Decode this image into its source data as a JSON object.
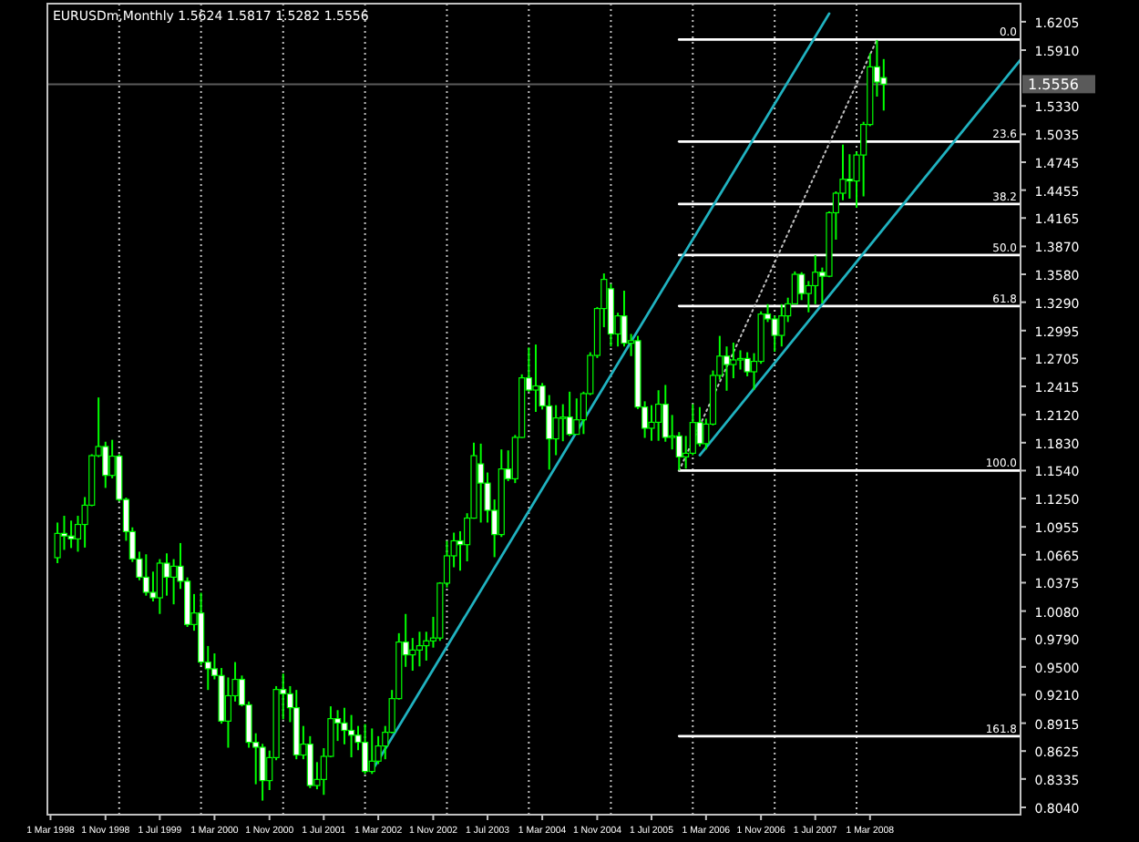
{
  "chart_data": {
    "type": "candlestick",
    "title": "EURUSDm,Monthly  1.5624 1.5817 1.5282 1.5556",
    "series": [
      {
        "color": "#00ff00",
        "x": [
          "1998-04",
          "1998-05",
          "1998-06",
          "1998-07",
          "1998-08",
          "1998-09",
          "1998-10",
          "1998-11",
          "1998-12",
          "1999-01",
          "1999-02",
          "1999-03",
          "1999-04",
          "1999-05",
          "1999-06",
          "1999-07",
          "1999-08",
          "1999-09",
          "1999-10",
          "1999-11",
          "1999-12",
          "2000-01",
          "2000-02",
          "2000-03",
          "2000-04",
          "2000-05",
          "2000-06",
          "2000-07",
          "2000-08",
          "2000-09",
          "2000-10",
          "2000-11",
          "2000-12",
          "2001-01",
          "2001-02",
          "2001-03",
          "2001-04",
          "2001-05",
          "2001-06",
          "2001-07",
          "2001-08",
          "2001-09",
          "2001-10",
          "2001-11",
          "2001-12",
          "2002-01",
          "2002-02",
          "2002-03",
          "2002-04",
          "2002-05",
          "2002-06",
          "2002-07",
          "2002-08",
          "2002-09",
          "2002-10",
          "2002-11",
          "2002-12",
          "2003-01",
          "2003-02",
          "2003-03",
          "2003-04",
          "2003-05",
          "2003-06",
          "2003-07",
          "2003-08",
          "2003-09",
          "2003-10",
          "2003-11",
          "2003-12",
          "2004-01",
          "2004-02",
          "2004-03",
          "2004-04",
          "2004-05",
          "2004-06",
          "2004-07",
          "2004-08",
          "2004-09",
          "2004-10",
          "2004-11",
          "2004-12",
          "2005-01",
          "2005-02",
          "2005-03",
          "2005-04",
          "2005-05",
          "2005-06",
          "2005-07",
          "2005-08",
          "2005-09",
          "2005-10",
          "2005-11",
          "2005-12",
          "2006-01",
          "2006-02",
          "2006-03",
          "2006-04",
          "2006-05",
          "2006-06",
          "2006-07",
          "2006-08",
          "2006-09",
          "2006-10",
          "2006-11",
          "2006-12",
          "2007-01",
          "2007-02",
          "2007-03",
          "2007-04",
          "2007-05",
          "2007-06",
          "2007-07",
          "2007-08",
          "2007-09",
          "2007-10",
          "2007-11",
          "2007-12",
          "2008-01",
          "2008-02",
          "2008-03",
          "2008-04",
          "2008-05"
        ],
        "ohlc": [
          [
            1.0635,
            1.1,
            1.0578,
            1.0887
          ],
          [
            1.0887,
            1.107,
            1.0716,
            1.086
          ],
          [
            1.086,
            1.102,
            1.0735,
            1.083
          ],
          [
            1.083,
            1.107,
            1.0697,
            1.098
          ],
          [
            1.098,
            1.1265,
            1.074,
            1.118
          ],
          [
            1.118,
            1.171,
            1.117,
            1.1695
          ],
          [
            1.1695,
            1.23,
            1.168,
            1.179
          ],
          [
            1.179,
            1.184,
            1.136,
            1.149
          ],
          [
            1.149,
            1.186,
            1.146,
            1.169
          ],
          [
            1.169,
            1.171,
            1.122,
            1.124
          ],
          [
            1.124,
            1.126,
            1.081,
            1.0906
          ],
          [
            1.0906,
            1.095,
            1.059,
            1.0622
          ],
          [
            1.0622,
            1.0697,
            1.04,
            1.0432
          ],
          [
            1.0432,
            1.067,
            1.024,
            1.0275
          ],
          [
            1.0275,
            1.049,
            1.018,
            1.0218
          ],
          [
            1.0218,
            1.062,
            1.005,
            1.0578
          ],
          [
            1.0578,
            1.068,
            1.024,
            1.0432
          ],
          [
            1.0432,
            1.062,
            1.015,
            1.0546
          ],
          [
            1.0546,
            1.0787,
            1.031,
            1.039
          ],
          [
            1.039,
            1.043,
            0.9915,
            0.994
          ],
          [
            0.994,
            1.0257,
            0.9876,
            1.006
          ],
          [
            1.006,
            1.027,
            0.952,
            0.955
          ],
          [
            0.955,
            0.9717,
            0.926,
            0.948
          ],
          [
            0.948,
            0.964,
            0.937,
            0.941
          ],
          [
            0.941,
            0.9488,
            0.891,
            0.8936
          ],
          [
            0.8936,
            0.939,
            0.866,
            0.92
          ],
          [
            0.92,
            0.955,
            0.914,
            0.937
          ],
          [
            0.937,
            0.941,
            0.909,
            0.9106
          ],
          [
            0.9106,
            0.914,
            0.866,
            0.8716
          ],
          [
            0.8716,
            0.881,
            0.828,
            0.8665
          ],
          [
            0.8665,
            0.87,
            0.811,
            0.8318
          ],
          [
            0.8318,
            0.863,
            0.822,
            0.8557
          ],
          [
            0.8557,
            0.93,
            0.853,
            0.9265
          ],
          [
            0.9265,
            0.943,
            0.8955,
            0.922
          ],
          [
            0.922,
            0.93,
            0.8926,
            0.9076
          ],
          [
            0.9076,
            0.926,
            0.854,
            0.8584
          ],
          [
            0.8584,
            0.8886,
            0.854,
            0.8697
          ],
          [
            0.8697,
            0.878,
            0.824,
            0.8267
          ],
          [
            0.8267,
            0.851,
            0.8228,
            0.833
          ],
          [
            0.833,
            0.8655,
            0.817,
            0.857
          ],
          [
            0.857,
            0.909,
            0.856,
            0.8962
          ],
          [
            0.8962,
            0.905,
            0.873,
            0.8917
          ],
          [
            0.8917,
            0.9075,
            0.8695,
            0.884
          ],
          [
            0.884,
            0.9,
            0.856,
            0.879
          ],
          [
            0.879,
            0.8886,
            0.8634,
            0.8716
          ],
          [
            0.8716,
            0.8905,
            0.8387,
            0.8413
          ],
          [
            0.8413,
            0.886,
            0.8387,
            0.852
          ],
          [
            0.852,
            0.878,
            0.849,
            0.8678
          ],
          [
            0.8678,
            0.8886,
            0.854,
            0.882
          ],
          [
            0.882,
            0.926,
            0.881,
            0.917
          ],
          [
            0.917,
            0.985,
            0.916,
            0.9758
          ],
          [
            0.9758,
            1.005,
            0.95,
            0.9625
          ],
          [
            0.9625,
            0.98,
            0.946,
            0.9675
          ],
          [
            0.9675,
            0.9865,
            0.9505,
            0.972
          ],
          [
            0.972,
            0.9865,
            0.9565,
            0.977
          ],
          [
            0.977,
            1.002,
            0.97,
            0.98
          ],
          [
            0.98,
            1.038,
            0.977,
            1.037
          ],
          [
            1.037,
            1.081,
            1.0325,
            1.0654
          ],
          [
            1.0654,
            1.0895,
            1.0535,
            1.081
          ],
          [
            1.081,
            1.091,
            1.05,
            1.077
          ],
          [
            1.077,
            1.1097,
            1.0597,
            1.1046
          ],
          [
            1.1046,
            1.183,
            1.104,
            1.1695
          ],
          [
            1.161,
            1.182,
            1.1,
            1.141
          ],
          [
            1.141,
            1.152,
            1.1,
            1.1127
          ],
          [
            1.1127,
            1.124,
            1.064,
            1.0875
          ],
          [
            1.0875,
            1.176,
            1.085,
            1.1557
          ],
          [
            1.1557,
            1.175,
            1.143,
            1.1455
          ],
          [
            1.1455,
            1.191,
            1.141,
            1.1885
          ],
          [
            1.1885,
            1.254,
            1.188,
            1.2504
          ],
          [
            1.2504,
            1.282,
            1.236,
            1.2377
          ],
          [
            1.2377,
            1.285,
            1.215,
            1.242
          ],
          [
            1.242,
            1.245,
            1.2175,
            1.2212
          ],
          [
            1.2212,
            1.2325,
            1.155,
            1.187
          ],
          [
            1.187,
            1.222,
            1.17,
            1.2087
          ],
          [
            1.2087,
            1.223,
            1.1845,
            1.2097
          ],
          [
            1.2097,
            1.236,
            1.19,
            1.1917
          ],
          [
            1.1917,
            1.229,
            1.1915,
            1.2068
          ],
          [
            1.2068,
            1.236,
            1.192,
            1.234
          ],
          [
            1.234,
            1.277,
            1.2325,
            1.2737
          ],
          [
            1.2737,
            1.324,
            1.271,
            1.3224
          ],
          [
            1.3224,
            1.3589,
            1.303,
            1.3527
          ],
          [
            1.343,
            1.348,
            1.283,
            1.296
          ],
          [
            1.296,
            1.318,
            1.283,
            1.3148
          ],
          [
            1.3148,
            1.341,
            1.283,
            1.2864
          ],
          [
            1.2864,
            1.296,
            1.273,
            1.289
          ],
          [
            1.289,
            1.294,
            1.218,
            1.2201
          ],
          [
            1.2201,
            1.226,
            1.188,
            1.198
          ],
          [
            1.198,
            1.222,
            1.185,
            1.2042
          ],
          [
            1.2042,
            1.2375,
            1.185,
            1.223
          ],
          [
            1.223,
            1.243,
            1.184,
            1.1885
          ],
          [
            1.1885,
            1.2118,
            1.176,
            1.19
          ],
          [
            1.19,
            1.194,
            1.1544,
            1.1682
          ],
          [
            1.1682,
            1.19,
            1.156,
            1.172
          ],
          [
            1.172,
            1.223,
            1.17,
            1.204
          ],
          [
            1.204,
            1.22,
            1.179,
            1.182
          ],
          [
            1.182,
            1.208,
            1.176,
            1.2023
          ],
          [
            1.2023,
            1.258,
            1.201,
            1.2529
          ],
          [
            1.2529,
            1.294,
            1.2485,
            1.273
          ],
          [
            1.273,
            1.283,
            1.237,
            1.2642
          ],
          [
            1.2642,
            1.287,
            1.25,
            1.269
          ],
          [
            1.269,
            1.279,
            1.259,
            1.2705
          ],
          [
            1.2705,
            1.277,
            1.252,
            1.2567
          ],
          [
            1.2567,
            1.276,
            1.238,
            1.2675
          ],
          [
            1.2675,
            1.3195,
            1.265,
            1.3167
          ],
          [
            1.3167,
            1.327,
            1.3084,
            1.3116
          ],
          [
            1.3116,
            1.315,
            1.2775,
            1.2945
          ],
          [
            1.2945,
            1.327,
            1.283,
            1.3148
          ],
          [
            1.3148,
            1.3337,
            1.3084,
            1.3273
          ],
          [
            1.3273,
            1.361,
            1.327,
            1.358
          ],
          [
            1.358,
            1.3602,
            1.3312,
            1.338
          ],
          [
            1.338,
            1.351,
            1.3185,
            1.3462
          ],
          [
            1.3462,
            1.3778,
            1.327,
            1.3602
          ],
          [
            1.3602,
            1.365,
            1.328,
            1.356
          ],
          [
            1.356,
            1.4234,
            1.355,
            1.422
          ],
          [
            1.422,
            1.4442,
            1.394,
            1.4423
          ],
          [
            1.4423,
            1.4928,
            1.435,
            1.4568
          ],
          [
            1.4568,
            1.4828,
            1.4366,
            1.455
          ],
          [
            1.455,
            1.4854,
            1.4271,
            1.482
          ],
          [
            1.482,
            1.5165,
            1.439,
            1.5137
          ],
          [
            1.5137,
            1.5876,
            1.512,
            1.5736
          ],
          [
            1.5736,
            1.6015,
            1.5427,
            1.5578
          ],
          [
            1.5624,
            1.5817,
            1.5282,
            1.5556
          ]
        ]
      },
      {
        "type": "line",
        "color": "#ffffff",
        "x": [
          "2005-11",
          "2010-01-01"
        ],
        "values": [
          1.602,
          1.602
        ]
      },
      {
        "type": "line",
        "color": "#ffffff",
        "x": [
          "2005-11",
          "2010-01-01"
        ],
        "values": [
          1.496,
          1.496
        ]
      },
      {
        "type": "line",
        "color": "#ffffff",
        "x": [
          "2005-11",
          "2010-01-01"
        ],
        "values": [
          1.431,
          1.431
        ]
      },
      {
        "type": "line",
        "color": "#ffffff",
        "x": [
          "2005-11",
          "2010-01-01"
        ],
        "values": [
          1.378,
          1.378
        ]
      },
      {
        "type": "line",
        "color": "#ffffff",
        "x": [
          "2005-11",
          "2010-01-01"
        ],
        "values": [
          1.325,
          1.325
        ]
      },
      {
        "type": "line",
        "color": "#ffffff",
        "x": [
          "2005-11",
          "2010-01-01"
        ],
        "values": [
          1.154,
          1.154
        ]
      },
      {
        "type": "line",
        "color": "#ffffff",
        "x": [
          "2005-11",
          "2010-01-01"
        ],
        "values": [
          0.878,
          0.878
        ]
      },
      {
        "type": "line",
        "color": "#c0c0c0",
        "line_style": "dotted",
        "x": [
          "2005-11",
          "2008-04"
        ],
        "values": [
          1.154,
          1.602
        ]
      },
      {
        "type": "line",
        "color": "#20b2c0",
        "x": [
          "2002-02",
          "2007-09"
        ],
        "values": [
          0.842,
          1.629
        ]
      },
      {
        "type": "line",
        "color": "#20b2c0",
        "x": [
          "2006-02",
          "2010-01-01"
        ],
        "values": [
          1.17,
          1.581
        ]
      }
    ],
    "xlim": [
      "1998-02-15",
      "2010-01-01"
    ],
    "xticks": [
      {
        "value": "1998-03",
        "label": "1 Mar 1998"
      },
      {
        "value": "1998-11",
        "label": "1 Nov 1998"
      },
      {
        "value": "1999-07",
        "label": "1 Jul 1999"
      },
      {
        "value": "2000-03",
        "label": "1 Mar 2000"
      },
      {
        "value": "2000-11",
        "label": "1 Nov 2000"
      },
      {
        "value": "2001-07",
        "label": "1 Jul 2001"
      },
      {
        "value": "2002-03",
        "label": "1 Mar 2002"
      },
      {
        "value": "2002-11",
        "label": "1 Nov 2002"
      },
      {
        "value": "2003-07",
        "label": "1 Jul 2003"
      },
      {
        "value": "2004-03",
        "label": "1 Mar 2004"
      },
      {
        "value": "2004-11",
        "label": "1 Nov 2004"
      },
      {
        "value": "2005-07",
        "label": "1 Jul 2005"
      },
      {
        "value": "2006-03",
        "label": "1 Mar 2006"
      },
      {
        "value": "2006-11",
        "label": "1 Nov 2006"
      },
      {
        "value": "2007-07",
        "label": "1 Jul 2007"
      },
      {
        "value": "2008-03",
        "label": "1 Mar 2008"
      }
    ],
    "ylim": [
      0.7964,
      1.6393
    ],
    "yticks": [
      {
        "value": 0.804,
        "label": "0.8040"
      },
      {
        "value": 0.8335,
        "label": "0.8335"
      },
      {
        "value": 0.8625,
        "label": "0.8625"
      },
      {
        "value": 0.8915,
        "label": "0.8915"
      },
      {
        "value": 0.921,
        "label": "0.9210"
      },
      {
        "value": 0.95,
        "label": "0.9500"
      },
      {
        "value": 0.979,
        "label": "0.9790"
      },
      {
        "value": 1.008,
        "label": "1.0080"
      },
      {
        "value": 1.0375,
        "label": "1.0375"
      },
      {
        "value": 1.0665,
        "label": "1.0665"
      },
      {
        "value": 1.0955,
        "label": "1.0955"
      },
      {
        "value": 1.125,
        "label": "1.1250"
      },
      {
        "value": 1.154,
        "label": "1.1540"
      },
      {
        "value": 1.183,
        "label": "1.1830"
      },
      {
        "value": 1.212,
        "label": "1.2120"
      },
      {
        "value": 1.2415,
        "label": "1.2415"
      },
      {
        "value": 1.2705,
        "label": "1.2705"
      },
      {
        "value": 1.2995,
        "label": "1.2995"
      },
      {
        "value": 1.329,
        "label": "1.3290"
      },
      {
        "value": 1.358,
        "label": "1.3580"
      },
      {
        "value": 1.387,
        "label": "1.3870"
      },
      {
        "value": 1.4165,
        "label": "1.4165"
      },
      {
        "value": 1.4455,
        "label": "1.4455"
      },
      {
        "value": 1.4745,
        "label": "1.4745"
      },
      {
        "value": 1.5035,
        "label": "1.5035"
      },
      {
        "value": 1.533,
        "label": "1.5330"
      },
      {
        "value": 1.591,
        "label": "1.5910"
      },
      {
        "value": 1.6205,
        "label": "1.6205"
      }
    ],
    "ref_lines": [
      {
        "axis": "y",
        "value": 1.5556,
        "label": "1.5556",
        "color": "#5a5a5a"
      },
      {
        "axis": "x",
        "value": "1999-01",
        "color": "#c0c0c0",
        "line_style": "dotted"
      },
      {
        "axis": "x",
        "value": "2000-01",
        "color": "#c0c0c0",
        "line_style": "dotted"
      },
      {
        "axis": "x",
        "value": "2001-01",
        "color": "#c0c0c0",
        "line_style": "dotted"
      },
      {
        "axis": "x",
        "value": "2002-01",
        "color": "#c0c0c0",
        "line_style": "dotted"
      },
      {
        "axis": "x",
        "value": "2003-01",
        "color": "#c0c0c0",
        "line_style": "dotted"
      },
      {
        "axis": "x",
        "value": "2004-01",
        "color": "#c0c0c0",
        "line_style": "dotted"
      },
      {
        "axis": "x",
        "value": "2005-01",
        "color": "#c0c0c0",
        "line_style": "dotted"
      },
      {
        "axis": "x",
        "value": "2006-01",
        "color": "#c0c0c0",
        "line_style": "dotted"
      },
      {
        "axis": "x",
        "value": "2007-01",
        "color": "#c0c0c0",
        "line_style": "dotted"
      },
      {
        "axis": "x",
        "value": "2008-01",
        "color": "#c0c0c0",
        "line_style": "dotted"
      }
    ],
    "annotations": [
      {
        "text": "0.0",
        "x": "2010-01-01",
        "y": 1.602
      },
      {
        "text": "23.6",
        "x": "2010-01-01",
        "y": 1.496
      },
      {
        "text": "38.2",
        "x": "2010-01-01",
        "y": 1.431
      },
      {
        "text": "50.0",
        "x": "2010-01-01",
        "y": 1.378
      },
      {
        "text": "61.8",
        "x": "2010-01-01",
        "y": 1.325
      },
      {
        "text": "100.0",
        "x": "2010-01-01",
        "y": 1.154
      },
      {
        "text": "161.8",
        "x": "2010-01-01",
        "y": 0.878
      }
    ]
  }
}
